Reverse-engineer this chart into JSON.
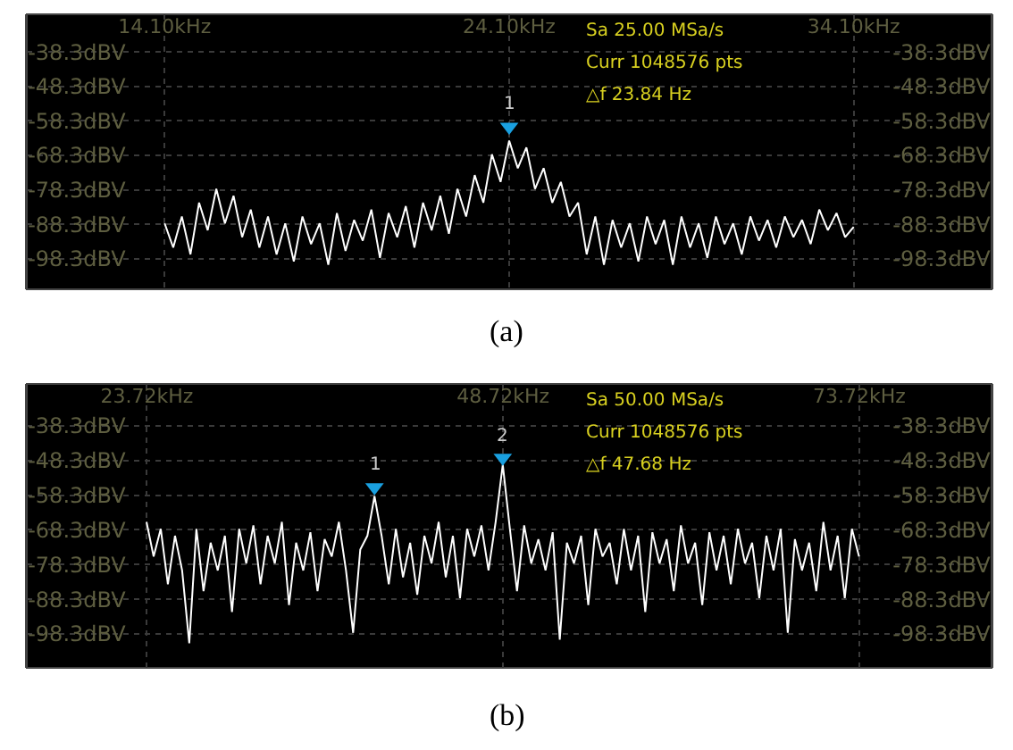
{
  "chart_data": [
    {
      "type": "line",
      "annotations": [
        "Sa 25.00 MSa/s",
        "Curr 1048576 pts",
        "△f 23.84 Hz",
        {
          "text": "1",
          "x": 24.1,
          "y": -60
        },
        "(a)"
      ],
      "x": [
        14.1,
        14.35,
        14.6,
        14.85,
        15.1,
        15.35,
        15.6,
        15.85,
        16.1,
        16.35,
        16.6,
        16.85,
        17.1,
        17.35,
        17.6,
        17.85,
        18.1,
        18.35,
        18.6,
        18.85,
        19.1,
        19.35,
        19.6,
        19.85,
        20.1,
        20.35,
        20.6,
        20.85,
        21.1,
        21.35,
        21.6,
        21.85,
        22.1,
        22.35,
        22.6,
        22.85,
        23.1,
        23.35,
        23.6,
        23.85,
        24.1,
        24.35,
        24.6,
        24.85,
        25.1,
        25.35,
        25.6,
        25.85,
        26.1,
        26.35,
        26.6,
        26.85,
        27.1,
        27.35,
        27.6,
        27.85,
        28.1,
        28.35,
        28.6,
        28.85,
        29.1,
        29.35,
        29.6,
        29.85,
        30.1,
        30.35,
        30.6,
        30.85,
        31.1,
        31.35,
        31.6,
        31.85,
        32.1,
        32.35,
        32.6,
        32.85,
        33.1,
        33.35,
        33.6,
        33.85,
        34.1
      ],
      "series": [
        {
          "color": "#ffffff",
          "values": [
            -88,
            -95,
            -86,
            -97,
            -82,
            -90,
            -78,
            -88,
            -80,
            -92,
            -84,
            -95,
            -86,
            -97,
            -88,
            -99,
            -86,
            -94,
            -88,
            -100,
            -85,
            -96,
            -87,
            -93,
            -84,
            -98,
            -85,
            -92,
            -83,
            -95,
            -82,
            -90,
            -80,
            -91,
            -78,
            -86,
            -74,
            -82,
            -68,
            -76,
            -64,
            -72,
            -66,
            -78,
            -72,
            -82,
            -76,
            -86,
            -82,
            -97,
            -86,
            -100,
            -87,
            -95,
            -88,
            -99,
            -86,
            -94,
            -87,
            -100,
            -86,
            -95,
            -88,
            -98,
            -86,
            -94,
            -88,
            -97,
            -86,
            -93,
            -87,
            -95,
            -86,
            -92,
            -87,
            -94,
            -84,
            -90,
            -85,
            -92,
            -89
          ]
        },
        {
          "type": "scatter",
          "marker": "triangle",
          "color": "#1aa0e0",
          "x": [
            24.1
          ],
          "values": [
            -60
          ]
        }
      ],
      "xlim": [
        10.1,
        38.1
      ],
      "xticks": [
        {
          "value": 14.1,
          "label": "14.10kHz"
        },
        {
          "value": 24.1,
          "label": "24.10kHz"
        },
        {
          "value": 34.1,
          "label": "34.10kHz"
        }
      ],
      "ylim": [
        -107.1,
        -27.4
      ],
      "yticks": [
        {
          "value": -38.3,
          "label": "-38.3dBV"
        },
        {
          "value": -48.3,
          "label": "-48.3dBV"
        },
        {
          "value": -58.3,
          "label": "-58.3dBV"
        },
        {
          "value": -68.3,
          "label": "-68.3dBV"
        },
        {
          "value": -78.3,
          "label": "-78.3dBV"
        },
        {
          "value": -88.3,
          "label": "-88.3dBV"
        },
        {
          "value": -98.3,
          "label": "-98.3dBV"
        }
      ],
      "y2lim": [
        -107.1,
        -27.4
      ],
      "y2ticks": [
        {
          "value": -38.3,
          "label": "-38.3dBV"
        },
        {
          "value": -48.3,
          "label": "-48.3dBV"
        },
        {
          "value": -58.3,
          "label": "-58.3dBV"
        },
        {
          "value": -68.3,
          "label": "-68.3dBV"
        },
        {
          "value": -78.3,
          "label": "-78.3dBV"
        },
        {
          "value": -88.3,
          "label": "-88.3dBV"
        },
        {
          "value": -98.3,
          "label": "-98.3dBV"
        }
      ],
      "grid": true,
      "marker": "none",
      "line_style": "solid"
    },
    {
      "type": "line",
      "annotations": [
        "Sa 50.00 MSa/s",
        "Curr 1048576 pts",
        "△f 47.68 Hz",
        {
          "text": "1",
          "x": 39.7,
          "y": -56
        },
        {
          "text": "2",
          "x": 48.7,
          "y": -47.5
        },
        "(b)"
      ],
      "x": [
        23.7,
        24.2,
        24.7,
        25.2,
        25.7,
        26.2,
        26.7,
        27.2,
        27.7,
        28.2,
        28.7,
        29.2,
        29.7,
        30.2,
        30.7,
        31.2,
        31.7,
        32.2,
        32.7,
        33.2,
        33.7,
        34.2,
        34.7,
        35.2,
        35.7,
        36.2,
        36.7,
        37.2,
        37.7,
        38.2,
        38.7,
        39.2,
        39.7,
        40.2,
        40.7,
        41.2,
        41.7,
        42.2,
        42.7,
        43.2,
        43.7,
        44.2,
        44.7,
        45.2,
        45.7,
        46.2,
        46.7,
        47.2,
        47.7,
        48.2,
        48.7,
        49.2,
        49.7,
        50.2,
        50.7,
        51.2,
        51.7,
        52.2,
        52.7,
        53.2,
        53.7,
        54.2,
        54.7,
        55.2,
        55.7,
        56.2,
        56.7,
        57.2,
        57.7,
        58.2,
        58.7,
        59.2,
        59.7,
        60.2,
        60.7,
        61.2,
        61.7,
        62.2,
        62.7,
        63.2,
        63.7,
        64.2,
        64.7,
        65.2,
        65.7,
        66.2,
        66.7,
        67.2,
        67.7,
        68.2,
        68.7,
        69.2,
        69.7,
        70.2,
        70.7,
        71.2,
        71.7,
        72.2,
        72.7,
        73.2,
        73.7
      ],
      "series": [
        {
          "color": "#ffffff",
          "values": [
            -66,
            -76,
            -68,
            -84,
            -70,
            -80,
            -101,
            -68,
            -86,
            -72,
            -80,
            -70,
            -92,
            -68,
            -78,
            -67,
            -84,
            -70,
            -78,
            -66,
            -90,
            -72,
            -80,
            -69,
            -86,
            -71,
            -76,
            -66,
            -80,
            -98,
            -74,
            -70,
            -58.6,
            -70,
            -84,
            -68,
            -82,
            -72,
            -87,
            -70,
            -78,
            -66,
            -82,
            -70,
            -88,
            -68,
            -76,
            -67,
            -80,
            -66,
            -49.5,
            -68,
            -86,
            -67,
            -78,
            -71,
            -80,
            -69,
            -100,
            -72,
            -78,
            -70,
            -90,
            -68,
            -76,
            -72,
            -84,
            -68,
            -80,
            -70,
            -92,
            -69,
            -78,
            -71,
            -86,
            -67,
            -78,
            -72,
            -90,
            -69,
            -80,
            -70,
            -84,
            -68,
            -78,
            -72,
            -88,
            -70,
            -80,
            -68,
            -98,
            -71,
            -80,
            -72,
            -86,
            -66,
            -80,
            -70,
            -88,
            -68,
            -76
          ]
        },
        {
          "type": "scatter",
          "marker": "triangle",
          "color": "#1aa0e0",
          "x": [
            39.7,
            48.7
          ],
          "values": [
            -56,
            -47.5
          ]
        }
      ],
      "xlim": [
        15.3,
        83.0
      ],
      "xticks": [
        {
          "value": 23.72,
          "label": "23.72kHz"
        },
        {
          "value": 48.72,
          "label": "48.72kHz"
        },
        {
          "value": 73.72,
          "label": "73.72kHz"
        }
      ],
      "ylim": [
        -108.1,
        -26.2
      ],
      "yticks": [
        {
          "value": -38.3,
          "label": "-38.3dBV"
        },
        {
          "value": -48.3,
          "label": "-48.3dBV"
        },
        {
          "value": -58.3,
          "label": "-58.3dBV"
        },
        {
          "value": -68.3,
          "label": "-68.3dBV"
        },
        {
          "value": -78.3,
          "label": "-78.3dBV"
        },
        {
          "value": -88.3,
          "label": "-88.3dBV"
        },
        {
          "value": -98.3,
          "label": "-98.3dBV"
        }
      ],
      "y2lim": [
        -108.1,
        -26.2
      ],
      "y2ticks": [
        {
          "value": -38.3,
          "label": "-38.3dBV"
        },
        {
          "value": -48.3,
          "label": "-48.3dBV"
        },
        {
          "value": -58.3,
          "label": "-58.3dBV"
        },
        {
          "value": -68.3,
          "label": "-68.3dBV"
        },
        {
          "value": -78.3,
          "label": "-78.3dBV"
        },
        {
          "value": -88.3,
          "label": "-88.3dBV"
        },
        {
          "value": -98.3,
          "label": "-98.3dBV"
        }
      ],
      "grid": true,
      "marker": "none",
      "line_style": "solid"
    }
  ]
}
